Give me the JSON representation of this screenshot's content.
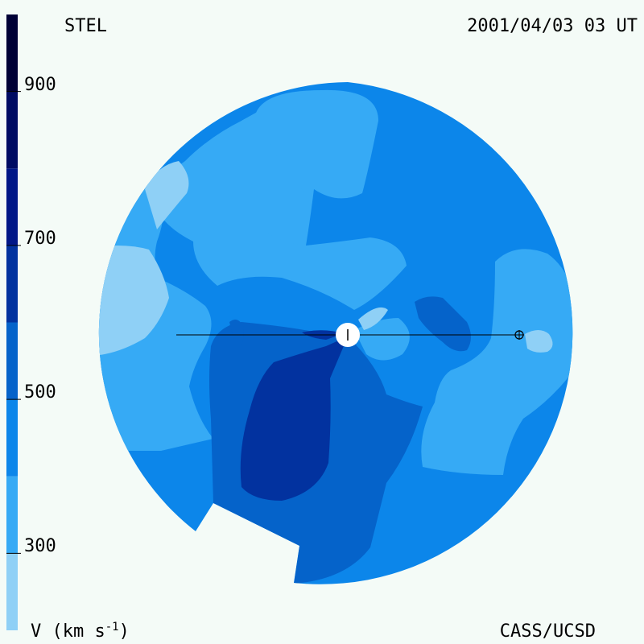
{
  "header": {
    "source": "STEL",
    "timestamp": "2001/04/03 03 UT"
  },
  "footer": {
    "credit": "CASS/UCSD",
    "units_prefix": "V (km s",
    "units_exponent": "-1",
    "units_suffix": ")"
  },
  "colorbar": {
    "ticks": [
      {
        "label": "900",
        "value": 900
      },
      {
        "label": "700",
        "value": 700
      },
      {
        "label": "500",
        "value": 500
      },
      {
        "label": "300",
        "value": 300
      }
    ],
    "levels": [
      {
        "from": 200,
        "to": 300,
        "color": "#8fd0f6"
      },
      {
        "from": 300,
        "to": 400,
        "color": "#36aaf5"
      },
      {
        "from": 400,
        "to": 500,
        "color": "#0c86ea"
      },
      {
        "from": 500,
        "to": 600,
        "color": "#0563ca"
      },
      {
        "from": 600,
        "to": 700,
        "color": "#02329f"
      },
      {
        "from": 700,
        "to": 800,
        "color": "#011788"
      },
      {
        "from": 800,
        "to": 900,
        "color": "#000b63"
      },
      {
        "from": 900,
        "to": 1000,
        "color": "#000036"
      }
    ],
    "range": [
      200,
      1000
    ]
  },
  "map": {
    "sun_symbol": "sun-center",
    "earth_symbol": "earth-symbol",
    "colors": {
      "background": "#f4fbf7",
      "v300": "#36aaf5",
      "v400": "#0c86ea",
      "v200": "#8fd0f6",
      "v500": "#0563ca",
      "v600": "#02329f",
      "sun": "#ffffff"
    }
  }
}
